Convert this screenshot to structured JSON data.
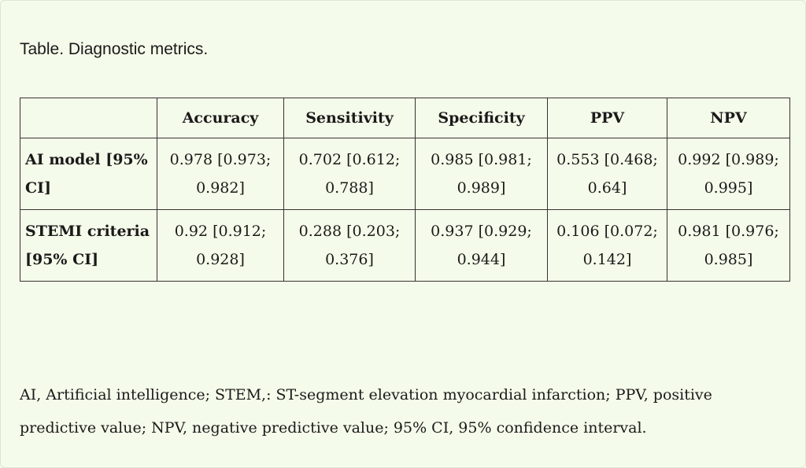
{
  "caption": "Table. Diagnostic metrics.",
  "table": {
    "headers": [
      "",
      "Accuracy",
      "Sensitivity",
      "Specificity",
      "PPV",
      "NPV"
    ],
    "rows": [
      {
        "label": "AI model [95% CI]",
        "cells": [
          "0.978 [0.973; 0.982]",
          "0.702 [0.612; 0.788]",
          "0.985 [0.981; 0.989]",
          "0.553 [0.468; 0.64]",
          "0.992 [0.989; 0.995]"
        ]
      },
      {
        "label": "STEMI criteria [95% CI]",
        "cells": [
          "0.92 [0.912; 0.928]",
          "0.288 [0.203; 0.376]",
          "0.937 [0.929; 0.944]",
          "0.106 [0.072; 0.142]",
          "0.981 [0.976; 0.985]"
        ]
      }
    ]
  },
  "footnote": "AI, Artificial intelligence; STEM,: ST-segment elevation myocardial infarction; PPV, positive predictive value; NPV, negative predictive value; 95% CI, 95% confidence interval."
}
